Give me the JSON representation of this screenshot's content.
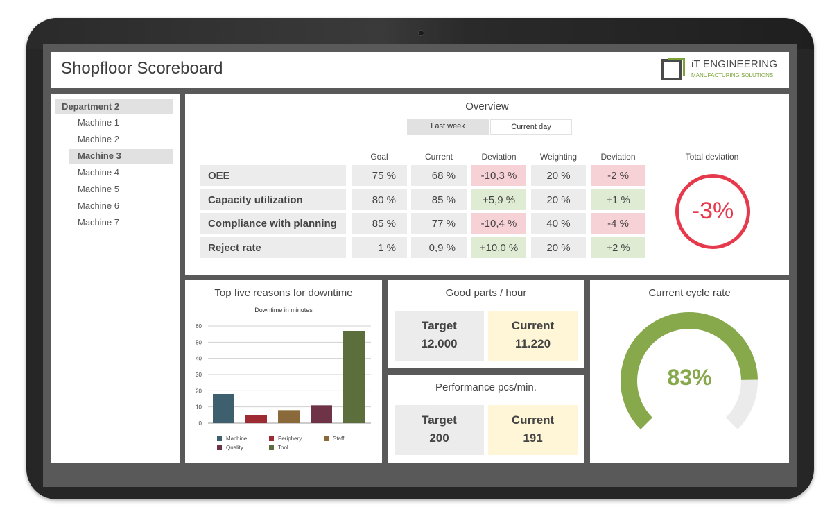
{
  "header": {
    "title": "Shopfloor Scoreboard",
    "logo": {
      "name": "iT ENGINEERING",
      "tagline": "MANUFACTURING SOLUTIONS",
      "accent": "#7aa43a"
    }
  },
  "sidebar": {
    "department": "Department 2",
    "machines": [
      "Machine 1",
      "Machine 2",
      "Machine 3",
      "Machine 4",
      "Machine 5",
      "Machine 6",
      "Machine 7"
    ],
    "selected": "Machine 3"
  },
  "overview": {
    "title": "Overview",
    "periods": [
      "Last week",
      "Current day"
    ],
    "active_period": "Last week",
    "columns": [
      "Goal",
      "Current",
      "Deviation",
      "Weighting",
      "Deviation"
    ],
    "rows": [
      {
        "label": "OEE",
        "goal": "75 %",
        "current": "68 %",
        "deviation": "-10,3 %",
        "deviation_status": "negative",
        "weighting": "20 %",
        "weighted_deviation": "-2 %",
        "weighted_status": "negative"
      },
      {
        "label": "Capacity utilization",
        "goal": "80 %",
        "current": "85 %",
        "deviation": "+5,9 %",
        "deviation_status": "positive",
        "weighting": "20 %",
        "weighted_deviation": "+1 %",
        "weighted_status": "positive"
      },
      {
        "label": "Compliance with planning",
        "goal": "85 %",
        "current": "77 %",
        "deviation": "-10,4 %",
        "deviation_status": "negative",
        "weighting": "40 %",
        "weighted_deviation": "-4 %",
        "weighted_status": "negative"
      },
      {
        "label": "Reject rate",
        "goal": "1 %",
        "current": "0,9 %",
        "deviation": "+10,0 %",
        "deviation_status": "positive",
        "weighting": "20 %",
        "weighted_deviation": "+2 %",
        "weighted_status": "positive"
      }
    ],
    "total_label": "Total deviation",
    "total_value": "-3%",
    "colors": {
      "negative": "#f6d1d6",
      "positive": "#dfecd3",
      "total": "#e6394c"
    }
  },
  "downtime": {
    "title": "Top five reasons for downtime",
    "chart_data": {
      "type": "bar",
      "title": "Downtime in minutes",
      "categories": [
        "Machine",
        "Periphery",
        "Staff",
        "Quality",
        "Tool"
      ],
      "values": [
        18,
        5,
        8,
        11,
        57
      ],
      "colors": [
        "#3e5f6e",
        "#9e2b32",
        "#8a6a3a",
        "#6e3346",
        "#5b6e3c"
      ],
      "ylim": [
        0,
        60
      ],
      "yticks": [
        0,
        10,
        20,
        30,
        40,
        50,
        60
      ],
      "grid": true,
      "legend": "bottom"
    }
  },
  "good_parts": {
    "title": "Good parts / hour",
    "target_label": "Target",
    "target": "12.000",
    "current_label": "Current",
    "current": "11.220"
  },
  "performance": {
    "title": "Performance pcs/min.",
    "target_label": "Target",
    "target": "200",
    "current_label": "Current",
    "current": "191"
  },
  "cycle_rate": {
    "title": "Current cycle rate",
    "value": "83%",
    "fraction": 0.83,
    "color": "#87a94c",
    "track": "#ebebeb"
  }
}
